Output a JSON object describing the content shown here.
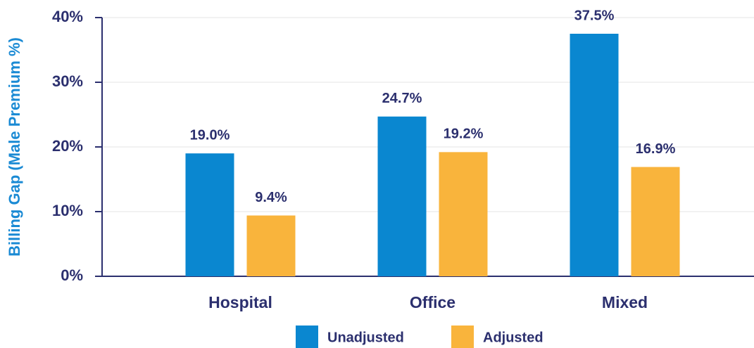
{
  "chart_data": {
    "type": "bar",
    "y_label": "Billing Gap (Male Premium %)",
    "categories": [
      "Hospital",
      "Office",
      "Mixed"
    ],
    "series": [
      {
        "name": "Unadjusted",
        "color": "#0a87d0",
        "values": [
          19.0,
          24.7,
          37.5
        ],
        "value_labels": [
          "19.0%",
          "24.7%",
          "37.5%"
        ]
      },
      {
        "name": "Adjusted",
        "color": "#f9b43c",
        "values": [
          9.4,
          19.2,
          16.9
        ],
        "value_labels": [
          "9.4%",
          "19.2%",
          "16.9%"
        ]
      }
    ],
    "ylim": [
      0,
      40
    ],
    "yticks": [
      {
        "value": 0,
        "label": "0%"
      },
      {
        "value": 10,
        "label": "10%"
      },
      {
        "value": 20,
        "label": "20%"
      },
      {
        "value": 30,
        "label": "30%"
      },
      {
        "value": 40,
        "label": "40%"
      }
    ],
    "grid": true,
    "legend": "bottom"
  }
}
